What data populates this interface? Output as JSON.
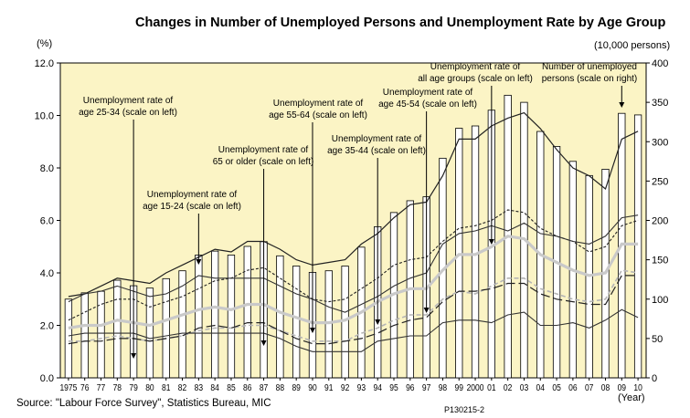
{
  "chart_data": {
    "type": "bar+line",
    "title": "Changes in Number of Unemployed Persons and Unemployment Rate by Age Group",
    "left_axis": {
      "unit": "(%)",
      "range": [
        0,
        12
      ],
      "ticks": [
        "0.0",
        "2.0",
        "4.0",
        "6.0",
        "8.0",
        "10.0",
        "12.0"
      ]
    },
    "right_axis": {
      "unit": "(10,000 persons)",
      "range": [
        0,
        400
      ],
      "ticks": [
        "0",
        "50",
        "100",
        "150",
        "200",
        "250",
        "300",
        "350",
        "400"
      ]
    },
    "x_unit": "(Year)",
    "categories": [
      "1975",
      "76",
      "77",
      "78",
      "79",
      "80",
      "81",
      "82",
      "83",
      "84",
      "85",
      "86",
      "87",
      "88",
      "89",
      "90",
      "91",
      "92",
      "93",
      "94",
      "95",
      "96",
      "97",
      "98",
      "99",
      "2000",
      "01",
      "02",
      "03",
      "04",
      "05",
      "06",
      "07",
      "08",
      "09",
      "10"
    ],
    "bars": {
      "name": "Number of unemployed persons (scale on right)",
      "values": [
        100,
        108,
        110,
        124,
        117,
        114,
        126,
        136,
        156,
        161,
        156,
        167,
        173,
        155,
        142,
        134,
        136,
        142,
        166,
        192,
        210,
        225,
        230,
        279,
        317,
        320,
        340,
        359,
        350,
        313,
        294,
        275,
        257,
        265,
        336,
        334
      ]
    },
    "series": [
      {
        "id": "age-15-24",
        "style": "solid-thin",
        "values": [
          3.1,
          3.2,
          3.5,
          3.8,
          3.7,
          3.6,
          4.0,
          4.3,
          4.6,
          4.9,
          4.8,
          5.2,
          5.2,
          4.9,
          4.5,
          4.3,
          4.4,
          4.5,
          5.1,
          5.5,
          6.1,
          6.6,
          6.7,
          7.7,
          9.1,
          9.1,
          9.6,
          9.9,
          10.1,
          9.5,
          8.7,
          8.0,
          7.7,
          7.2,
          9.1,
          9.4
        ]
      },
      {
        "id": "age-25-34",
        "style": "dashed",
        "values": [
          2.2,
          2.5,
          2.8,
          3.0,
          3.0,
          2.7,
          2.9,
          3.1,
          3.4,
          3.7,
          3.8,
          4.1,
          4.2,
          3.8,
          3.4,
          3.0,
          2.9,
          3.0,
          3.4,
          3.8,
          4.3,
          4.5,
          4.6,
          5.2,
          5.7,
          5.8,
          6.0,
          6.4,
          6.3,
          5.7,
          5.4,
          5.2,
          4.8,
          5.0,
          5.8,
          6.0
        ]
      },
      {
        "id": "all-age-groups",
        "style": "gray-thick",
        "values": [
          1.9,
          2.0,
          2.0,
          2.2,
          2.1,
          2.0,
          2.2,
          2.4,
          2.6,
          2.7,
          2.6,
          2.8,
          2.8,
          2.5,
          2.3,
          2.1,
          2.1,
          2.2,
          2.5,
          2.9,
          3.2,
          3.4,
          3.4,
          4.1,
          4.7,
          4.7,
          5.0,
          5.4,
          5.3,
          4.7,
          4.4,
          4.1,
          3.9,
          4.0,
          5.1,
          5.1
        ]
      },
      {
        "id": "age-35-44",
        "style": "dashed-gray",
        "values": [
          1.4,
          1.4,
          1.5,
          1.6,
          1.5,
          1.4,
          1.5,
          1.6,
          1.8,
          1.9,
          1.9,
          2.0,
          2.0,
          1.8,
          1.6,
          1.4,
          1.4,
          1.4,
          1.7,
          1.9,
          2.2,
          2.4,
          2.4,
          3.0,
          3.3,
          3.2,
          3.5,
          3.8,
          3.8,
          3.4,
          3.2,
          3.0,
          2.9,
          3.0,
          4.1,
          4.0
        ]
      },
      {
        "id": "age-45-54",
        "style": "long-dash",
        "values": [
          1.3,
          1.4,
          1.4,
          1.5,
          1.5,
          1.4,
          1.5,
          1.6,
          1.9,
          2.0,
          1.9,
          2.1,
          2.1,
          1.8,
          1.5,
          1.3,
          1.3,
          1.4,
          1.5,
          1.7,
          2.0,
          2.2,
          2.3,
          2.9,
          3.3,
          3.3,
          3.4,
          3.6,
          3.6,
          3.2,
          3.0,
          2.9,
          2.8,
          2.8,
          3.9,
          3.9
        ]
      },
      {
        "id": "age-55-64",
        "style": "solid",
        "values": [
          2.9,
          3.2,
          3.3,
          3.5,
          3.3,
          3.1,
          3.2,
          3.5,
          3.9,
          3.8,
          3.8,
          3.8,
          3.8,
          3.5,
          3.2,
          3.0,
          2.7,
          2.5,
          2.8,
          3.1,
          3.5,
          3.8,
          4.0,
          5.1,
          5.5,
          5.6,
          5.8,
          5.6,
          5.9,
          5.5,
          5.4,
          5.2,
          5.1,
          5.4,
          6.1,
          6.2
        ]
      },
      {
        "id": "age-65-older",
        "style": "solid",
        "values": [
          1.6,
          1.7,
          1.7,
          1.7,
          1.7,
          1.5,
          1.6,
          1.7,
          1.7,
          1.7,
          1.7,
          1.7,
          1.7,
          1.5,
          1.2,
          1.0,
          1.0,
          1.0,
          1.0,
          1.4,
          1.5,
          1.6,
          1.6,
          2.1,
          2.2,
          2.2,
          2.1,
          2.4,
          2.5,
          2.0,
          2.0,
          2.1,
          1.9,
          2.2,
          2.6,
          2.3
        ]
      }
    ],
    "annotations": [
      {
        "id": "age-25-34",
        "lines": [
          "Unemployment rate of",
          "age 25-34 (scale on left)"
        ],
        "year_index": 4
      },
      {
        "id": "age-15-24",
        "lines": [
          "Unemployment rate of",
          "age 15-24 (scale on left)"
        ],
        "year_index": 8
      },
      {
        "id": "age-65-older",
        "lines": [
          "Unemployment rate of",
          "65 or older (scale on left)"
        ],
        "year_index": 12
      },
      {
        "id": "age-55-64",
        "lines": [
          "Unemployment rate of",
          "age 55-64 (scale on left)"
        ],
        "year_index": 15
      },
      {
        "id": "age-35-44",
        "lines": [
          "Unemployment rate of",
          "age 35-44 (scale on left)"
        ],
        "year_index": 19
      },
      {
        "id": "age-45-54",
        "lines": [
          "Unemployment rate of",
          "age 45-54 (scale on left)"
        ],
        "year_index": 22
      },
      {
        "id": "all-age-groups",
        "lines": [
          "Unemployment rate of",
          "all age groups (scale on left)"
        ],
        "year_index": 26
      },
      {
        "id": "unemployed-persons",
        "lines": [
          "Number of unemployed",
          "persons (scale on right)"
        ],
        "year_index": 34
      }
    ],
    "background_color": "#fbf4c5"
  },
  "source": "Source: \"Labour Force Survey\", Statistics Bureau, MIC",
  "code": "P130215-2"
}
